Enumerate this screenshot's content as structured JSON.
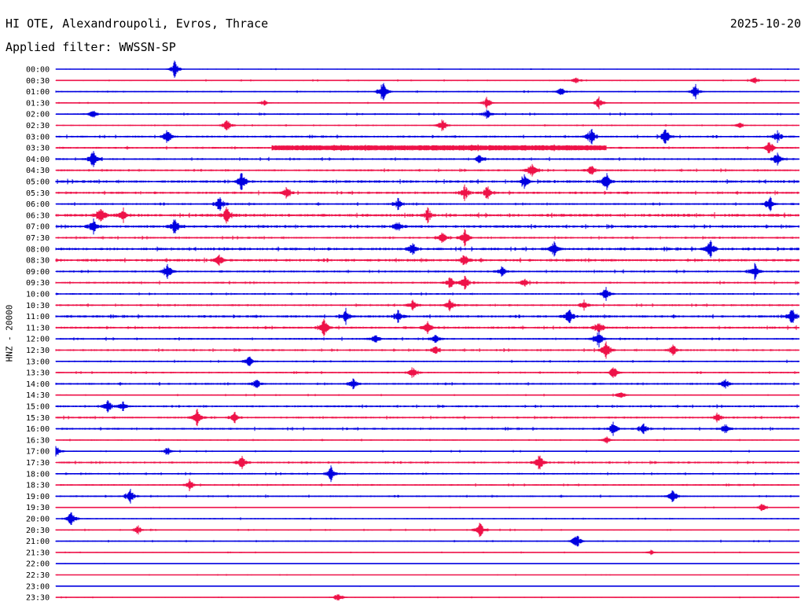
{
  "header": {
    "station": "HI OTE, Alexandroupoli, Evros, Thrace",
    "date": "2025-10-20",
    "filter": "Applied filter: WWSSN-SP"
  },
  "colors": {
    "even_row": "#0000e0",
    "odd_row": "#ee1248",
    "text": "#000000"
  },
  "chart_data": {
    "type": "line",
    "title": "HI OTE, Alexandroupoli, Evros, Thrace",
    "ylabel": "HNZ - 20000",
    "xlabel": "",
    "grid": false,
    "legend": "none",
    "row_labels": [
      "00:00",
      "00:30",
      "01:00",
      "01:30",
      "02:00",
      "02:30",
      "03:00",
      "03:30",
      "04:00",
      "04:30",
      "05:00",
      "05:30",
      "06:00",
      "06:30",
      "07:00",
      "07:30",
      "08:00",
      "08:30",
      "09:00",
      "09:30",
      "10:00",
      "10:30",
      "11:00",
      "11:30",
      "12:00",
      "12:30",
      "13:00",
      "13:30",
      "14:00",
      "14:30",
      "15:00",
      "15:30",
      "16:00",
      "16:30",
      "17:00",
      "17:30",
      "18:00",
      "18:30",
      "19:00",
      "19:30",
      "20:00",
      "20:30",
      "21:00",
      "21:30",
      "22:00",
      "22:30",
      "23:00",
      "23:30"
    ],
    "rows": [
      {
        "noise": 0.3,
        "events": [
          [
            0.16,
            1.3
          ]
        ]
      },
      {
        "noise": 0.4,
        "events": [
          [
            0.7,
            0.5
          ],
          [
            0.94,
            0.6
          ]
        ]
      },
      {
        "noise": 0.4,
        "events": [
          [
            0.44,
            2.0
          ],
          [
            0.68,
            0.8
          ],
          [
            0.86,
            1.2
          ]
        ]
      },
      {
        "noise": 0.3,
        "events": [
          [
            0.28,
            0.6
          ],
          [
            0.58,
            1.0
          ],
          [
            0.73,
            1.0
          ]
        ]
      },
      {
        "noise": 0.5,
        "events": [
          [
            0.05,
            0.7
          ],
          [
            0.58,
            0.8
          ]
        ]
      },
      {
        "noise": 0.4,
        "events": [
          [
            0.23,
            1.0
          ],
          [
            0.52,
            1.2
          ],
          [
            0.92,
            0.5
          ]
        ]
      },
      {
        "noise": 0.6,
        "events": [
          [
            0.15,
            1.2
          ],
          [
            0.72,
            1.6
          ],
          [
            0.82,
            1.4
          ],
          [
            0.97,
            1.0
          ]
        ]
      },
      {
        "noise": 0.6,
        "events": [
          [
            0.96,
            1.2
          ]
        ],
        "band": [
          0.29,
          0.74
        ]
      },
      {
        "noise": 0.6,
        "events": [
          [
            0.05,
            1.4
          ],
          [
            0.57,
            1.0
          ],
          [
            0.97,
            1.2
          ]
        ]
      },
      {
        "noise": 0.6,
        "events": [
          [
            0.64,
            1.4
          ],
          [
            0.72,
            0.9
          ]
        ]
      },
      {
        "noise": 0.8,
        "events": [
          [
            0.25,
            1.5
          ],
          [
            0.63,
            1.0
          ],
          [
            0.74,
            1.4
          ]
        ]
      },
      {
        "noise": 0.7,
        "events": [
          [
            0.31,
            0.9
          ],
          [
            0.55,
            1.2
          ],
          [
            0.58,
            1.0
          ]
        ]
      },
      {
        "noise": 0.6,
        "events": [
          [
            0.22,
            1.3
          ],
          [
            0.46,
            0.9
          ],
          [
            0.96,
            1.3
          ]
        ]
      },
      {
        "noise": 0.9,
        "events": [
          [
            0.06,
            1.5
          ],
          [
            0.09,
            1.3
          ],
          [
            0.23,
            1.3
          ],
          [
            0.5,
            1.1
          ]
        ]
      },
      {
        "noise": 0.8,
        "events": [
          [
            0.05,
            1.3
          ],
          [
            0.16,
            1.4
          ],
          [
            0.46,
            1.0
          ]
        ]
      },
      {
        "noise": 0.6,
        "events": [
          [
            0.52,
            1.0
          ],
          [
            0.55,
            1.5
          ]
        ]
      },
      {
        "noise": 0.8,
        "events": [
          [
            0.48,
            1.0
          ],
          [
            0.67,
            1.2
          ],
          [
            0.88,
            1.6
          ]
        ]
      },
      {
        "noise": 0.8,
        "events": [
          [
            0.22,
            0.9
          ],
          [
            0.55,
            1.1
          ]
        ]
      },
      {
        "noise": 0.6,
        "events": [
          [
            0.15,
            1.3
          ],
          [
            0.6,
            0.8
          ],
          [
            0.94,
            1.2
          ]
        ]
      },
      {
        "noise": 0.6,
        "events": [
          [
            0.53,
            1.0
          ],
          [
            0.55,
            1.2
          ],
          [
            0.63,
            0.8
          ]
        ]
      },
      {
        "noise": 0.5,
        "events": [
          [
            0.74,
            1.3
          ]
        ]
      },
      {
        "noise": 0.6,
        "events": [
          [
            0.48,
            0.9
          ],
          [
            0.53,
            1.1
          ],
          [
            0.71,
            0.9
          ]
        ]
      },
      {
        "noise": 0.7,
        "events": [
          [
            0.39,
            1.2
          ],
          [
            0.46,
            1.1
          ],
          [
            0.69,
            1.3
          ],
          [
            0.99,
            1.5
          ]
        ]
      },
      {
        "noise": 0.7,
        "events": [
          [
            0.36,
            1.6
          ],
          [
            0.5,
            1.0
          ],
          [
            0.73,
            1.1
          ]
        ]
      },
      {
        "noise": 0.6,
        "events": [
          [
            0.43,
            0.9
          ],
          [
            0.51,
            0.8
          ],
          [
            0.73,
            1.3
          ]
        ]
      },
      {
        "noise": 0.6,
        "events": [
          [
            0.51,
            0.8
          ],
          [
            0.74,
            1.6
          ],
          [
            0.83,
            0.9
          ]
        ]
      },
      {
        "noise": 0.5,
        "events": [
          [
            0.26,
            0.9
          ]
        ]
      },
      {
        "noise": 0.5,
        "events": [
          [
            0.48,
            1.0
          ],
          [
            0.75,
            1.0
          ]
        ]
      },
      {
        "noise": 0.6,
        "events": [
          [
            0.27,
            0.9
          ],
          [
            0.4,
            0.8
          ],
          [
            0.9,
            0.9
          ]
        ]
      },
      {
        "noise": 0.4,
        "events": [
          [
            0.76,
            0.9
          ]
        ]
      },
      {
        "noise": 0.6,
        "events": [
          [
            0.07,
            1.0
          ],
          [
            0.09,
            0.8
          ]
        ]
      },
      {
        "noise": 0.6,
        "events": [
          [
            0.19,
            1.4
          ],
          [
            0.24,
            1.0
          ],
          [
            0.89,
            0.8
          ]
        ]
      },
      {
        "noise": 0.6,
        "events": [
          [
            0.75,
            1.1
          ],
          [
            0.79,
            0.9
          ],
          [
            0.9,
            0.9
          ]
        ]
      },
      {
        "noise": 0.4,
        "events": [
          [
            0.74,
            0.6
          ]
        ]
      },
      {
        "noise": 0.4,
        "events": [
          [
            0.0,
            1.1
          ],
          [
            0.15,
            0.7
          ]
        ]
      },
      {
        "noise": 0.6,
        "events": [
          [
            0.25,
            1.1
          ],
          [
            0.65,
            1.3
          ]
        ]
      },
      {
        "noise": 0.5,
        "events": [
          [
            0.37,
            1.2
          ]
        ]
      },
      {
        "noise": 0.5,
        "events": [
          [
            0.18,
            0.9
          ]
        ]
      },
      {
        "noise": 0.5,
        "events": [
          [
            0.1,
            1.2
          ],
          [
            0.83,
            1.2
          ]
        ]
      },
      {
        "noise": 0.3,
        "events": [
          [
            0.95,
            0.7
          ]
        ]
      },
      {
        "noise": 0.4,
        "events": [
          [
            0.02,
            1.3
          ]
        ]
      },
      {
        "noise": 0.4,
        "events": [
          [
            0.11,
            0.8
          ],
          [
            0.57,
            1.4
          ]
        ]
      },
      {
        "noise": 0.4,
        "events": [
          [
            0.7,
            1.4
          ]
        ]
      },
      {
        "noise": 0.3,
        "events": [
          [
            0.8,
            0.5
          ]
        ]
      },
      {
        "noise": 0.2,
        "events": []
      },
      {
        "noise": 0.25,
        "events": []
      },
      {
        "noise": 0.2,
        "events": []
      },
      {
        "noise": 0.3,
        "events": [
          [
            0.38,
            1.0
          ]
        ]
      }
    ]
  }
}
